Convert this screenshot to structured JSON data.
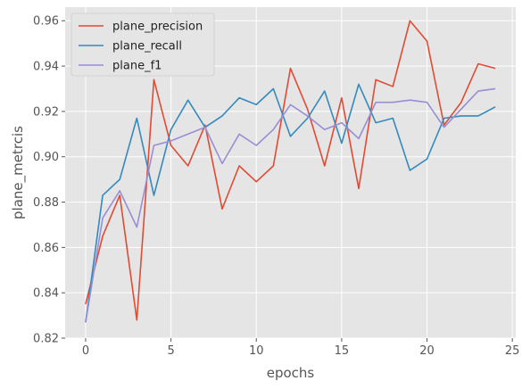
{
  "chart_data": {
    "type": "line",
    "xlabel": "epochs",
    "ylabel": "plane_metrcis",
    "xlim": [
      -1.2,
      25.2
    ],
    "ylim": [
      0.82,
      0.966
    ],
    "xticks": [
      0,
      5,
      10,
      15,
      20,
      25
    ],
    "yticks": [
      0.82,
      0.84,
      0.86,
      0.88,
      0.9,
      0.92,
      0.94,
      0.96
    ],
    "grid": true,
    "legend_position": "top-left",
    "x": [
      0,
      1,
      2,
      3,
      4,
      5,
      6,
      7,
      8,
      9,
      10,
      11,
      12,
      13,
      14,
      15,
      16,
      17,
      18,
      19,
      20,
      21,
      22,
      23,
      24
    ],
    "series": [
      {
        "name": "plane_precision",
        "color": "#e24a33",
        "values": [
          0.835,
          0.865,
          0.883,
          0.828,
          0.934,
          0.905,
          0.896,
          0.914,
          0.877,
          0.896,
          0.889,
          0.896,
          0.939,
          0.921,
          0.896,
          0.926,
          0.886,
          0.934,
          0.931,
          0.96,
          0.951,
          0.914,
          0.924,
          0.941,
          0.939
        ]
      },
      {
        "name": "plane_recall",
        "color": "#348abd",
        "values": [
          0.827,
          0.883,
          0.89,
          0.917,
          0.883,
          0.912,
          0.925,
          0.913,
          0.918,
          0.926,
          0.923,
          0.93,
          0.909,
          0.917,
          0.929,
          0.906,
          0.932,
          0.915,
          0.917,
          0.894,
          0.899,
          0.917,
          0.918,
          0.918,
          0.922
        ]
      },
      {
        "name": "plane_f1",
        "color": "#988ed5",
        "values": [
          0.827,
          0.873,
          0.885,
          0.869,
          0.905,
          0.907,
          0.91,
          0.913,
          0.897,
          0.91,
          0.905,
          0.912,
          0.923,
          0.918,
          0.912,
          0.915,
          0.908,
          0.924,
          0.924,
          0.925,
          0.924,
          0.913,
          0.921,
          0.929,
          0.93
        ]
      }
    ]
  }
}
